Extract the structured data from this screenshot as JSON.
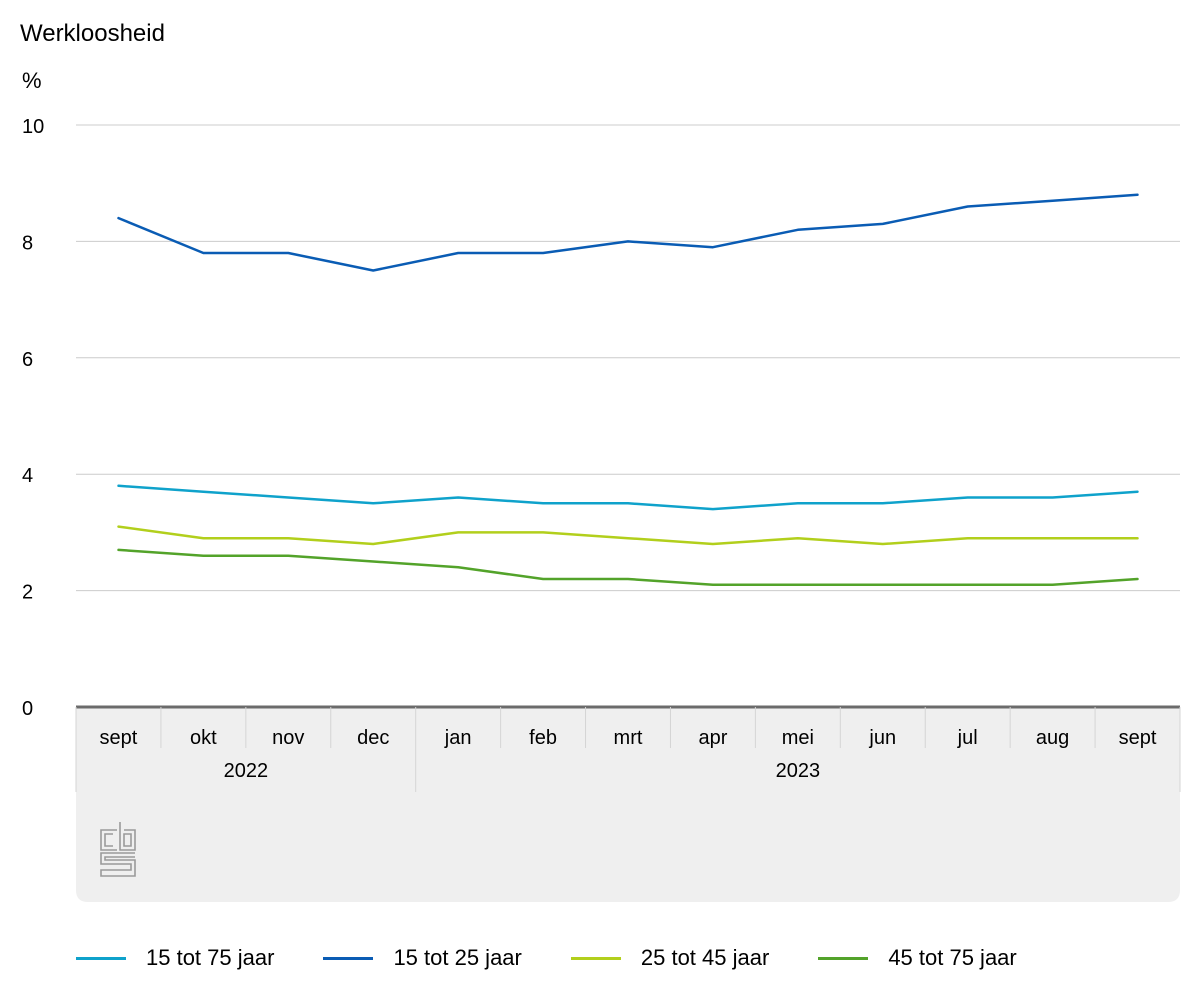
{
  "chart_data": {
    "type": "line",
    "title": "Werkloosheid",
    "ylabel": "%",
    "xlabel": "",
    "ylim": [
      0,
      10
    ],
    "yticks": [
      "0",
      "2",
      "4",
      "6",
      "8",
      "10"
    ],
    "grid": true,
    "legend_position": "bottom",
    "categories": [
      "sept",
      "okt",
      "nov",
      "dec",
      "jan",
      "feb",
      "mrt",
      "apr",
      "mei",
      "jun",
      "jul",
      "aug",
      "sept"
    ],
    "groups": [
      {
        "label": "2022",
        "count": 4
      },
      {
        "label": "2023",
        "count": 9
      }
    ],
    "series": [
      {
        "name": "15 tot 75 jaar",
        "color": "#0fa2cb",
        "values": [
          3.8,
          3.7,
          3.6,
          3.5,
          3.6,
          3.5,
          3.5,
          3.4,
          3.5,
          3.5,
          3.6,
          3.6,
          3.7
        ]
      },
      {
        "name": "15 tot 25 jaar",
        "color": "#0a5cb4",
        "values": [
          8.4,
          7.8,
          7.8,
          7.5,
          7.8,
          7.8,
          8.0,
          7.9,
          8.2,
          8.3,
          8.6,
          8.7,
          8.8
        ]
      },
      {
        "name": "25 tot 45 jaar",
        "color": "#b2cf1c",
        "values": [
          3.1,
          2.9,
          2.9,
          2.8,
          3.0,
          3.0,
          2.9,
          2.8,
          2.9,
          2.8,
          2.9,
          2.9,
          2.9
        ]
      },
      {
        "name": "45 tot 75 jaar",
        "color": "#53a32a",
        "values": [
          2.7,
          2.6,
          2.6,
          2.5,
          2.4,
          2.2,
          2.2,
          2.1,
          2.1,
          2.1,
          2.1,
          2.1,
          2.2
        ]
      }
    ]
  },
  "logo": {
    "text": "cbs"
  }
}
